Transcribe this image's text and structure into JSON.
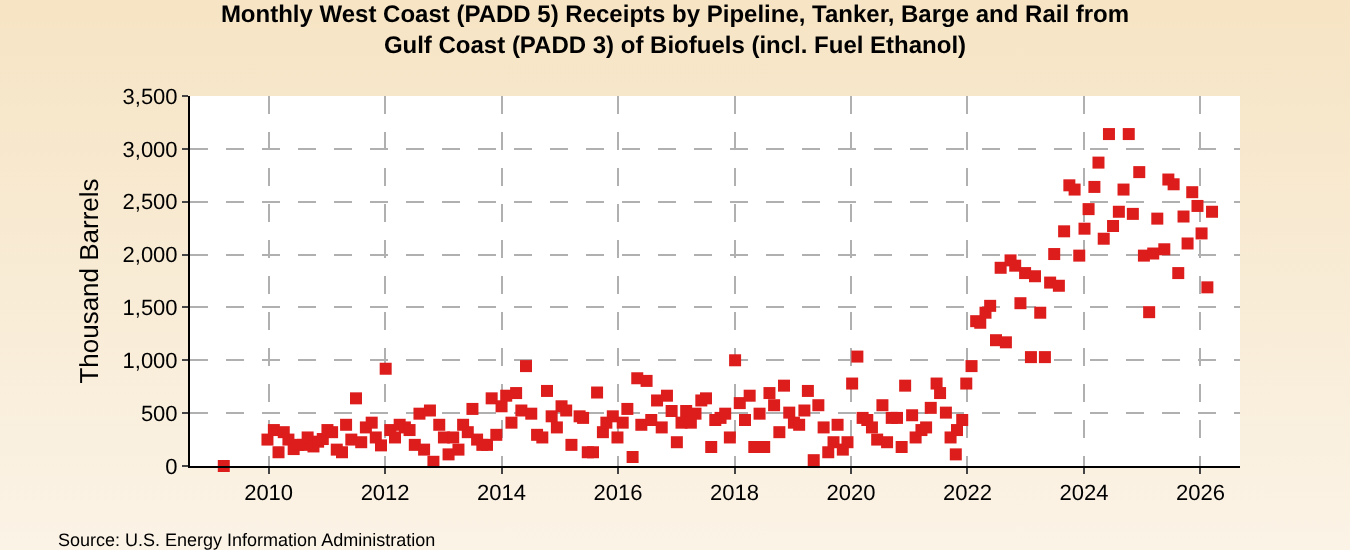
{
  "chart_data": {
    "type": "scatter",
    "title": "Monthly West Coast (PADD 5) Receipts by Pipeline, Tanker, Barge and Rail from Gulf Coast (PADD 3) of Biofuels (incl. Fuel Ethanol)",
    "ylabel": "Thousand Barrels",
    "annotations": [
      "Source: U.S. Energy Information Administration"
    ],
    "x": [
      2009.23,
      2009.98,
      2010.09,
      2010.17,
      2010.26,
      2010.34,
      2010.43,
      2010.51,
      2010.59,
      2010.67,
      2010.77,
      2010.85,
      2010.93,
      2011.01,
      2011.09,
      2011.17,
      2011.26,
      2011.33,
      2011.42,
      2011.5,
      2011.59,
      2011.67,
      2011.77,
      2011.84,
      2011.93,
      2012.01,
      2012.09,
      2012.17,
      2012.25,
      2012.34,
      2012.42,
      2012.51,
      2012.59,
      2012.67,
      2012.77,
      2012.83,
      2012.93,
      2013.01,
      2013.09,
      2013.17,
      2013.26,
      2013.34,
      2013.42,
      2013.5,
      2013.58,
      2013.67,
      2013.75,
      2013.83,
      2013.91,
      2014,
      2014.08,
      2014.17,
      2014.25,
      2014.34,
      2014.42,
      2014.51,
      2014.61,
      2014.7,
      2014.78,
      2014.86,
      2014.95,
      2015.03,
      2015.11,
      2015.2,
      2015.34,
      2015.4,
      2015.48,
      2015.57,
      2015.64,
      2015.74,
      2015.8,
      2015.91,
      2015.99,
      2016.08,
      2016.16,
      2016.25,
      2016.33,
      2016.4,
      2016.49,
      2016.57,
      2016.67,
      2016.75,
      2016.84,
      2016.92,
      2017.01,
      2017.09,
      2017.17,
      2017.25,
      2017.33,
      2017.43,
      2017.51,
      2017.6,
      2017.67,
      2017.76,
      2017.84,
      2017.92,
      2018.01,
      2018.09,
      2018.18,
      2018.26,
      2018.34,
      2018.43,
      2018.51,
      2018.6,
      2018.68,
      2018.77,
      2018.85,
      2018.94,
      2019.02,
      2019.11,
      2019.2,
      2019.26,
      2019.36,
      2019.44,
      2019.53,
      2019.61,
      2019.7,
      2019.77,
      2019.86,
      2019.94,
      2020.02,
      2020.11,
      2020.2,
      2020.28,
      2020.36,
      2020.45,
      2020.54,
      2020.62,
      2020.7,
      2020.79,
      2020.87,
      2020.93,
      2021.05,
      2021.11,
      2021.21,
      2021.29,
      2021.37,
      2021.47,
      2021.53,
      2021.63,
      2021.71,
      2021.8,
      2021.82,
      2021.91,
      2021.98,
      2022.07,
      2022.15,
      2022.22,
      2022.31,
      2022.39,
      2022.49,
      2022.57,
      2022.66,
      2022.74,
      2022.82,
      2022.91,
      2022.99,
      2023.09,
      2023.16,
      2023.25,
      2023.33,
      2023.42,
      2023.49,
      2023.57,
      2023.66,
      2023.75,
      2023.84,
      2023.92,
      2024.01,
      2024.08,
      2024.18,
      2024.25,
      2024.34,
      2024.43,
      2024.5,
      2024.6,
      2024.68,
      2024.77,
      2024.84,
      2024.95,
      2025.03,
      2025.12,
      2025.19,
      2025.26,
      2025.38,
      2025.45,
      2025.54,
      2025.62,
      2025.71,
      2025.78,
      2025.86,
      2025.95,
      2026.02,
      2026.12,
      2026.2
    ],
    "series": [
      {
        "color": "#dd1c1c",
        "values": [
          0,
          250,
          340,
          130,
          320,
          250,
          160,
          200,
          200,
          270,
          185,
          230,
          255,
          340,
          320,
          155,
          130,
          390,
          250,
          640,
          225,
          365,
          410,
          270,
          195,
          920,
          340,
          270,
          390,
          365,
          340,
          200,
          495,
          155,
          525,
          40,
          390,
          270,
          110,
          270,
          155,
          390,
          320,
          540,
          250,
          200,
          200,
          640,
          295,
          565,
          665,
          410,
          690,
          525,
          945,
          495,
          295,
          270,
          710,
          470,
          365,
          565,
          525,
          200,
          470,
          455,
          130,
          130,
          695,
          320,
          410,
          470,
          270,
          410,
          540,
          85,
          830,
          390,
          805,
          435,
          620,
          365,
          665,
          520,
          225,
          410,
          520,
          410,
          495,
          620,
          640,
          180,
          435,
          455,
          495,
          270,
          1000,
          595,
          435,
          665,
          180,
          495,
          180,
          690,
          575,
          320,
          760,
          505,
          410,
          390,
          525,
          710,
          55,
          575,
          365,
          130,
          225,
          390,
          155,
          225,
          780,
          1035,
          455,
          435,
          365,
          250,
          575,
          225,
          455,
          455,
          180,
          760,
          480,
          270,
          340,
          365,
          550,
          780,
          690,
          505,
          270,
          110,
          340,
          435,
          780,
          945,
          1370,
          1355,
          1450,
          1515,
          1190,
          1875,
          1170,
          1945,
          1895,
          1540,
          1825,
          1030,
          1795,
          1450,
          1030,
          1735,
          2005,
          1705,
          2220,
          2655,
          2615,
          1990,
          2245,
          2430,
          2640,
          2870,
          2150,
          3140,
          2270,
          2405,
          2615,
          3140,
          2385,
          2780,
          1990,
          1455,
          2010,
          2340,
          2050,
          2710,
          2665,
          1825,
          2360,
          2105,
          2590,
          2460,
          2200,
          1690,
          2405
        ]
      }
    ],
    "xlim": [
      2008.65,
      2026.68
    ],
    "xticks": [
      2010,
      2012,
      2014,
      2016,
      2018,
      2020,
      2022,
      2024,
      2026
    ],
    "ylim": [
      0,
      3500
    ],
    "yticks": [
      0,
      {
        "value": 500,
        "label": "500"
      },
      {
        "value": 1000,
        "label": "1,000"
      },
      {
        "value": 1500,
        "label": "1,500"
      },
      {
        "value": 2000,
        "label": "2,000"
      },
      {
        "value": 2500,
        "label": "2,500"
      },
      {
        "value": 3000,
        "label": "3,000"
      },
      {
        "value": 3500,
        "label": "3,500"
      }
    ],
    "grid": true,
    "marker": "square"
  }
}
